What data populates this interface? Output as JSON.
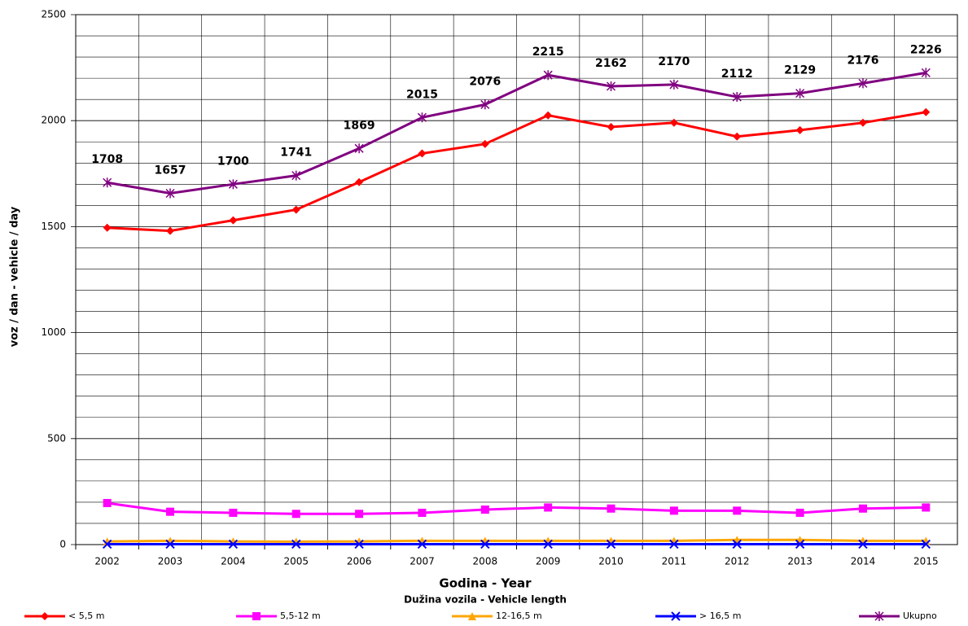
{
  "chart_data": {
    "type": "line",
    "x_label": "Godina - Year",
    "legend_title": "Dužina vozila - Vehicle length",
    "y_label": "voz / dan - vehicle / day",
    "categories": [
      "2002",
      "2003",
      "2004",
      "2005",
      "2006",
      "2007",
      "2008",
      "2009",
      "2010",
      "2011",
      "2012",
      "2013",
      "2014",
      "2015"
    ],
    "ylim": [
      0,
      2500
    ],
    "yticks": [
      0,
      500,
      1000,
      1500,
      2000,
      2500
    ],
    "minor_yticks": [
      100,
      200,
      300,
      400,
      600,
      700,
      800,
      900,
      1100,
      1200,
      1300,
      1400,
      1600,
      1700,
      1800,
      1900,
      2100,
      2200,
      2300,
      2400
    ],
    "grid": true,
    "legend": "bottom",
    "series": [
      {
        "name": "< 5,5 m",
        "color": "#ff0000",
        "marker": "diamond",
        "values": [
          1495,
          1480,
          1530,
          1580,
          1710,
          1845,
          1890,
          2025,
          1970,
          1990,
          1925,
          1955,
          1990,
          2040
        ]
      },
      {
        "name": "5,5-12 m",
        "color": "#ff00ff",
        "marker": "square",
        "values": [
          196,
          155,
          150,
          145,
          145,
          150,
          165,
          175,
          170,
          160,
          160,
          150,
          170,
          175
        ]
      },
      {
        "name": "12-16,5 m",
        "color": "#ffa500",
        "marker": "triangle",
        "values": [
          15,
          18,
          15,
          14,
          15,
          18,
          18,
          18,
          18,
          18,
          22,
          22,
          18,
          18
        ]
      },
      {
        "name": "> 16,5 m",
        "color": "#0000ff",
        "marker": "x",
        "values": [
          2,
          2,
          2,
          2,
          2,
          2,
          2,
          2,
          2,
          2,
          2,
          2,
          2,
          2
        ]
      },
      {
        "name": "Ukupno",
        "color": "#800080",
        "marker": "star",
        "values": [
          1708,
          1657,
          1700,
          1741,
          1869,
          2015,
          2076,
          2215,
          2162,
          2170,
          2112,
          2129,
          2176,
          2226
        ],
        "show_value_labels": true
      }
    ]
  }
}
